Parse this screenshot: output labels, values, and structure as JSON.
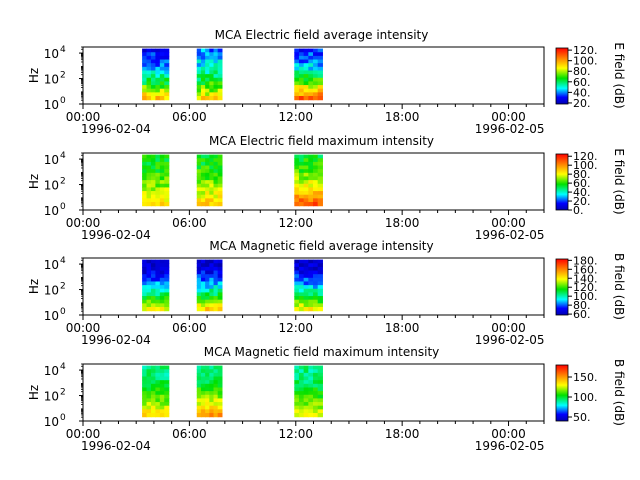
{
  "figure": {
    "panels": [
      {
        "title": "MCA  Electric field average intensity",
        "ylabel": "Hz",
        "cbar_label": "E field (dB)",
        "cbar_ticks": [
          "20.",
          "40.",
          "60.",
          "80.",
          "100.",
          "120."
        ],
        "y_ticks": [
          "10",
          "10",
          "10"
        ],
        "y_exps": [
          "0",
          "2",
          "4"
        ],
        "x_ticks": [
          "00:00",
          "06:00",
          "12:00",
          "18:00",
          "00:00"
        ],
        "x_date_left": "1996-02-04",
        "x_date_right": "1996-02-05"
      },
      {
        "title": "MCA  Electric field maximum intensity",
        "ylabel": "Hz",
        "cbar_label": "E field (dB)",
        "cbar_ticks": [
          "0.",
          "20.",
          "40.",
          "60.",
          "80.",
          "100.",
          "120."
        ],
        "y_ticks": [
          "10",
          "10",
          "10"
        ],
        "y_exps": [
          "0",
          "2",
          "4"
        ],
        "x_ticks": [
          "00:00",
          "06:00",
          "12:00",
          "18:00",
          "00:00"
        ],
        "x_date_left": "1996-02-04",
        "x_date_right": "1996-02-05"
      },
      {
        "title": "MCA  Magnetic field average intensity",
        "ylabel": "Hz",
        "cbar_label": "B field (dB)",
        "cbar_ticks": [
          "60.",
          "80.",
          "100.",
          "120.",
          "140.",
          "160.",
          "180."
        ],
        "y_ticks": [
          "10",
          "10",
          "10"
        ],
        "y_exps": [
          "0",
          "2",
          "4"
        ],
        "x_ticks": [
          "00:00",
          "06:00",
          "12:00",
          "18:00",
          "00:00"
        ],
        "x_date_left": "1996-02-04",
        "x_date_right": "1996-02-05"
      },
      {
        "title": "MCA  Magnetic field maximum intensity",
        "ylabel": "Hz",
        "cbar_label": "B field (dB)",
        "cbar_ticks": [
          "50.",
          "100.",
          "150."
        ],
        "y_ticks": [
          "10",
          "10",
          "10"
        ],
        "y_exps": [
          "0",
          "2",
          "4"
        ],
        "x_ticks": [
          "00:00",
          "06:00",
          "12:00",
          "18:00",
          "00:00"
        ],
        "x_date_left": "1996-02-04",
        "x_date_right": "1996-02-05"
      }
    ]
  },
  "chart_data": [
    {
      "type": "heatmap",
      "title": "MCA  Electric field average intensity",
      "ylabel": "Hz",
      "y_scale": "log",
      "ylim": [
        1,
        30000
      ],
      "xlim": [
        "1996-02-04 00:00",
        "1996-02-05 02:00"
      ],
      "colorbar": {
        "label": "E field (dB)",
        "range": [
          18,
          124
        ]
      },
      "data_segments": [
        {
          "start": "1996-02-04 03:20",
          "end": "1996-02-04 04:50",
          "low_freq_db": 95,
          "high_freq_db": 30
        },
        {
          "start": "1996-02-04 06:25",
          "end": "1996-02-04 07:50",
          "low_freq_db": 90,
          "high_freq_db": 40
        },
        {
          "start": "1996-02-04 11:55",
          "end": "1996-02-04 13:30",
          "low_freq_db": 110,
          "high_freq_db": 32
        }
      ]
    },
    {
      "type": "heatmap",
      "title": "MCA  Electric field maximum intensity",
      "ylabel": "Hz",
      "y_scale": "log",
      "ylim": [
        1,
        30000
      ],
      "xlim": [
        "1996-02-04 00:00",
        "1996-02-05 02:00"
      ],
      "colorbar": {
        "label": "E field (dB)",
        "range": [
          0,
          125
        ]
      },
      "data_segments": [
        {
          "start": "1996-02-04 03:20",
          "end": "1996-02-04 04:50",
          "low_freq_db": 85,
          "high_freq_db": 55
        },
        {
          "start": "1996-02-04 06:25",
          "end": "1996-02-04 07:50",
          "low_freq_db": 88,
          "high_freq_db": 55
        },
        {
          "start": "1996-02-04 11:55",
          "end": "1996-02-04 13:30",
          "low_freq_db": 110,
          "high_freq_db": 55
        }
      ]
    },
    {
      "type": "heatmap",
      "title": "MCA  Magnetic field average intensity",
      "ylabel": "Hz",
      "y_scale": "log",
      "ylim": [
        1,
        30000
      ],
      "xlim": [
        "1996-02-04 00:00",
        "1996-02-05 02:00"
      ],
      "colorbar": {
        "label": "B field (dB)",
        "range": [
          58,
          183
        ]
      },
      "data_segments": [
        {
          "start": "1996-02-04 03:20",
          "end": "1996-02-04 04:50",
          "low_freq_db": 140,
          "high_freq_db": 62
        },
        {
          "start": "1996-02-04 06:25",
          "end": "1996-02-04 07:50",
          "low_freq_db": 145,
          "high_freq_db": 62
        },
        {
          "start": "1996-02-04 11:55",
          "end": "1996-02-04 13:30",
          "low_freq_db": 140,
          "high_freq_db": 62
        }
      ]
    },
    {
      "type": "heatmap",
      "title": "MCA  Magnetic field maximum intensity",
      "ylabel": "Hz",
      "y_scale": "log",
      "ylim": [
        1,
        30000
      ],
      "xlim": [
        "1996-02-04 00:00",
        "1996-02-05 02:00"
      ],
      "colorbar": {
        "label": "B field (dB)",
        "range": [
          40,
          180
        ]
      },
      "data_segments": [
        {
          "start": "1996-02-04 03:20",
          "end": "1996-02-04 04:50",
          "low_freq_db": 135,
          "high_freq_db": 90
        },
        {
          "start": "1996-02-04 06:25",
          "end": "1996-02-04 07:50",
          "low_freq_db": 150,
          "high_freq_db": 90
        },
        {
          "start": "1996-02-04 11:55",
          "end": "1996-02-04 13:30",
          "low_freq_db": 130,
          "high_freq_db": 90
        }
      ]
    }
  ]
}
